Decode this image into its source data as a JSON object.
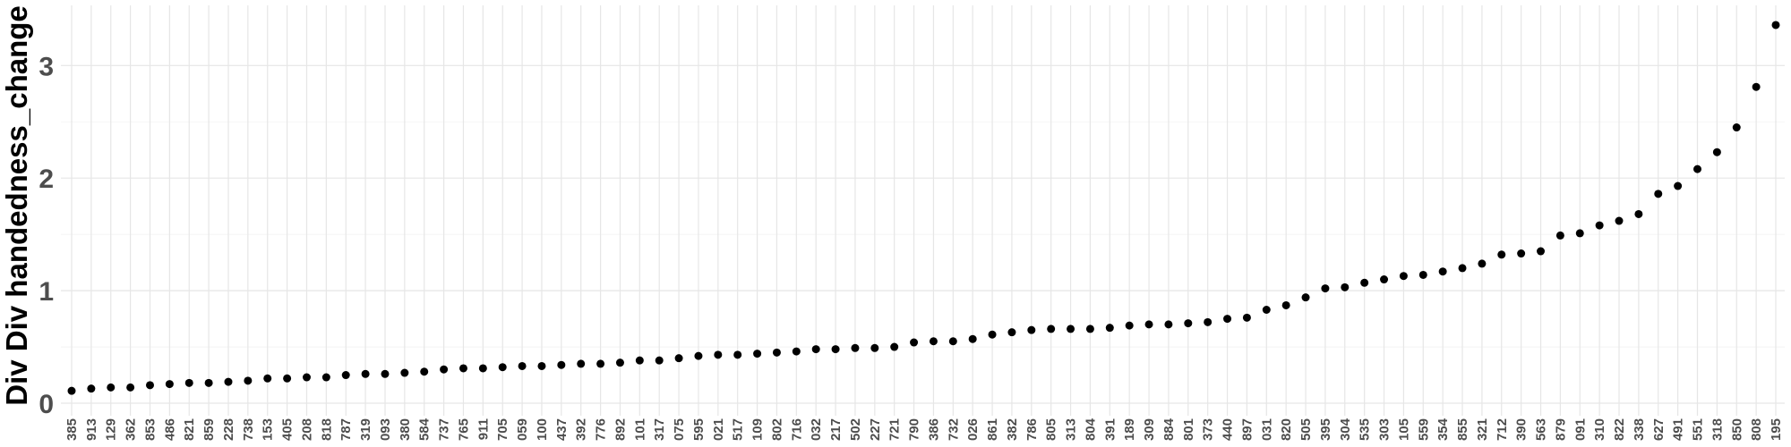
{
  "chart_data": {
    "type": "scatter",
    "title": "",
    "xlabel": "",
    "ylabel": "Div Div handedness_change",
    "ylim": [
      0,
      3.4
    ],
    "yticks": [
      0,
      1,
      2,
      3
    ],
    "grid": true,
    "point_color": "#000000",
    "categories": [
      "385",
      "913",
      "129",
      "362",
      "853",
      "486",
      "821",
      "859",
      "228",
      "738",
      "153",
      "405",
      "208",
      "818",
      "787",
      "319",
      "093",
      "380",
      "584",
      "737",
      "765",
      "911",
      "705",
      "059",
      "100",
      "437",
      "392",
      "776",
      "892",
      "101",
      "317",
      "075",
      "595",
      "021",
      "517",
      "109",
      "802",
      "716",
      "032",
      "217",
      "502",
      "227",
      "721",
      "790",
      "386",
      "732",
      "026",
      "861",
      "382",
      "786",
      "805",
      "313",
      "804",
      "391",
      "189",
      "309",
      "884",
      "801",
      "373",
      "440",
      "897",
      "031",
      "820",
      "505",
      "395",
      "304",
      "535",
      "303",
      "105",
      "559",
      "354",
      "855",
      "321",
      "712",
      "390",
      "563",
      "879",
      "091",
      "310",
      "822",
      "338",
      "627",
      "491",
      "551",
      "318",
      "850",
      "808",
      "195"
    ],
    "values": [
      0.11,
      0.13,
      0.14,
      0.14,
      0.16,
      0.17,
      0.18,
      0.18,
      0.19,
      0.2,
      0.22,
      0.22,
      0.23,
      0.23,
      0.25,
      0.26,
      0.26,
      0.27,
      0.28,
      0.3,
      0.31,
      0.31,
      0.32,
      0.33,
      0.33,
      0.34,
      0.35,
      0.35,
      0.36,
      0.38,
      0.38,
      0.4,
      0.42,
      0.43,
      0.43,
      0.44,
      0.45,
      0.46,
      0.48,
      0.48,
      0.49,
      0.49,
      0.5,
      0.54,
      0.55,
      0.55,
      0.57,
      0.61,
      0.63,
      0.65,
      0.66,
      0.66,
      0.66,
      0.67,
      0.69,
      0.7,
      0.7,
      0.71,
      0.72,
      0.75,
      0.76,
      0.83,
      0.87,
      0.94,
      1.02,
      1.03,
      1.07,
      1.1,
      1.13,
      1.14,
      1.17,
      1.2,
      1.24,
      1.32,
      1.33,
      1.35,
      1.49,
      1.51,
      1.58,
      1.62,
      1.68,
      1.86,
      1.93,
      2.08,
      2.23,
      2.45,
      2.81,
      3.36
    ]
  }
}
